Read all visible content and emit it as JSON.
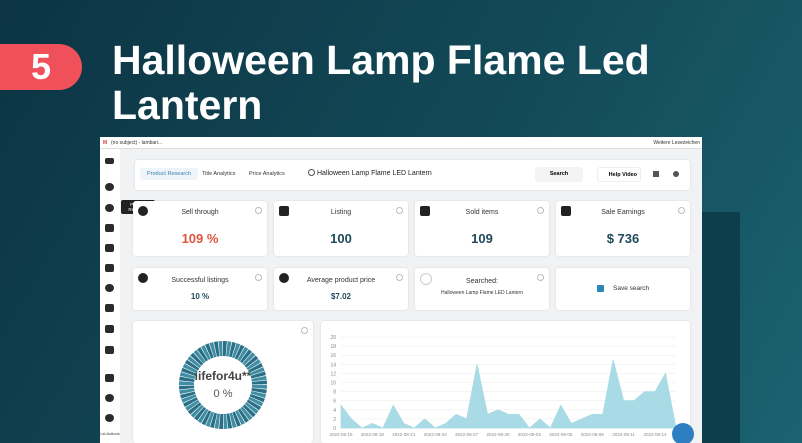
{
  "badge": "5",
  "headline": "Halloween Lamp Flame Led Lantern",
  "browser_bar": {
    "tab": "(no subject) - lambari...",
    "bookmark": "Weitere Lesezeichen"
  },
  "tooltip": "Product Research",
  "sidebar_bottom": "Lst Actions",
  "nav": {
    "tabs": [
      "Product Research",
      "Title Analytics",
      "Price Analytics"
    ],
    "query": "Halloween Lamp Flame LED Lantern",
    "search_button": "Search",
    "help": "Help Video"
  },
  "cards": [
    {
      "label": "Sell through",
      "value": "109 %"
    },
    {
      "label": "Listing",
      "value": "100"
    },
    {
      "label": "Sold items",
      "value": "109"
    },
    {
      "label": "Sale Earnings",
      "value": "$ 736"
    },
    {
      "label": "Successful listings",
      "value": "10 %"
    },
    {
      "label": "Average product price",
      "value": "$7.02"
    }
  ],
  "searched": {
    "label": "Searched:",
    "query": "Halloween Lamp Flame LED Lantern"
  },
  "save_search": "Save search",
  "donut": {
    "label": "lifefor4u**",
    "value": "0 %"
  },
  "chart_data": {
    "type": "area",
    "color": "#a8dbe6",
    "categories": [
      "2022-08-15",
      null,
      null,
      "2022-08-18",
      null,
      null,
      "2022-08-21",
      null,
      null,
      "2022-08-24",
      null,
      null,
      "2022-08-27",
      null,
      null,
      "2022-08-30",
      null,
      null,
      "2022-09-02",
      null,
      null,
      "2022-09-05",
      null,
      null,
      "2022-09-08",
      null,
      null,
      "2022-09-11",
      null,
      null,
      "2022-09-14",
      null,
      null
    ],
    "values": [
      5,
      2,
      0,
      1,
      0,
      5,
      1,
      0,
      2,
      0,
      1,
      3,
      2,
      14,
      3,
      4,
      3,
      3,
      0,
      2,
      0,
      5,
      1,
      2,
      3,
      3,
      15,
      6,
      6,
      8,
      8,
      12,
      0
    ],
    "ylim": [
      0,
      20
    ],
    "yticks": [
      0,
      2,
      4,
      6,
      8,
      10,
      12,
      14,
      16,
      18,
      20
    ],
    "grid": true
  }
}
